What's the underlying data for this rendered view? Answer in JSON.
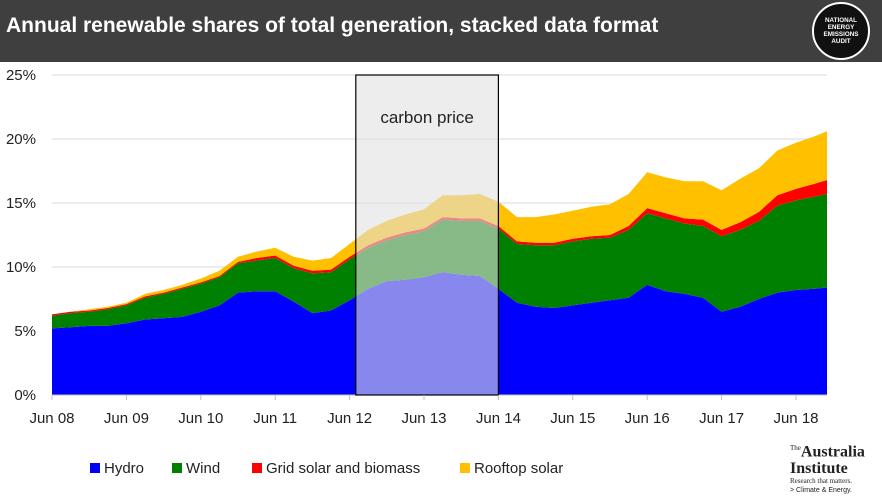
{
  "header": {
    "title": "Annual renewable shares of total generation, stacked data format",
    "badge_lines": [
      "NATIONAL",
      "ENERGY",
      "EMISSIONS",
      "AUDIT"
    ]
  },
  "logo": {
    "the": "The",
    "name_line1": "Australia",
    "name_line2": "Institute",
    "tagline": "Research that matters.",
    "sub": "> Climate & Energy."
  },
  "chart_data": {
    "type": "area",
    "stacked": true,
    "title": "Annual renewable shares of total generation, stacked data format",
    "ylim": [
      0,
      25
    ],
    "y_unit": "%",
    "y_ticks": [
      "0%",
      "5%",
      "10%",
      "15%",
      "20%",
      "25%"
    ],
    "x_range": [
      "2008-06",
      "2018-11"
    ],
    "x_ticks": [
      "Jun 08",
      "Jun 09",
      "Jun 10",
      "Jun 11",
      "Jun 12",
      "Jun 13",
      "Jun 14",
      "Jun 15",
      "Jun 16",
      "Jun 17",
      "Jun 18"
    ],
    "grid": true,
    "legend_position": "bottom",
    "x": [
      "2008-06",
      "2008-09",
      "2008-12",
      "2009-03",
      "2009-06",
      "2009-09",
      "2009-12",
      "2010-03",
      "2010-06",
      "2010-09",
      "2010-12",
      "2011-03",
      "2011-06",
      "2011-09",
      "2011-12",
      "2012-03",
      "2012-06",
      "2012-09",
      "2012-12",
      "2013-03",
      "2013-06",
      "2013-09",
      "2013-12",
      "2014-03",
      "2014-06",
      "2014-09",
      "2014-12",
      "2015-03",
      "2015-06",
      "2015-09",
      "2015-12",
      "2016-03",
      "2016-06",
      "2016-09",
      "2016-12",
      "2017-03",
      "2017-06",
      "2017-09",
      "2017-12",
      "2018-03",
      "2018-06",
      "2018-09",
      "2018-11"
    ],
    "series": [
      {
        "name": "Hydro",
        "color": "#0000ff",
        "values": [
          5.2,
          5.3,
          5.4,
          5.4,
          5.6,
          5.9,
          6.0,
          6.1,
          6.5,
          7.0,
          8.0,
          8.1,
          8.1,
          7.3,
          6.4,
          6.6,
          7.4,
          8.3,
          8.9,
          9.0,
          9.2,
          9.6,
          9.4,
          9.3,
          8.3,
          7.2,
          6.9,
          6.8,
          7.0,
          7.2,
          7.4,
          7.6,
          8.6,
          8.1,
          7.9,
          7.6,
          6.5,
          6.9,
          7.5,
          8.0,
          8.2,
          8.3,
          8.4
        ]
      },
      {
        "name": "Wind",
        "color": "#008000",
        "values": [
          1.0,
          1.1,
          1.1,
          1.3,
          1.4,
          1.7,
          1.9,
          2.2,
          2.2,
          2.2,
          2.3,
          2.4,
          2.6,
          2.6,
          3.1,
          3.0,
          3.2,
          3.2,
          3.2,
          3.5,
          3.6,
          4.1,
          4.2,
          4.3,
          4.7,
          4.6,
          4.8,
          4.9,
          5.0,
          5.0,
          4.9,
          5.3,
          5.6,
          5.7,
          5.5,
          5.6,
          5.9,
          6.0,
          6.1,
          6.8,
          7.0,
          7.2,
          7.3
        ]
      },
      {
        "name": "Grid solar and biomass",
        "color": "#ff0000",
        "values": [
          0.1,
          0.1,
          0.1,
          0.1,
          0.1,
          0.1,
          0.1,
          0.1,
          0.1,
          0.1,
          0.1,
          0.2,
          0.2,
          0.2,
          0.2,
          0.2,
          0.2,
          0.2,
          0.2,
          0.2,
          0.2,
          0.2,
          0.2,
          0.2,
          0.2,
          0.2,
          0.2,
          0.2,
          0.2,
          0.2,
          0.2,
          0.3,
          0.4,
          0.4,
          0.4,
          0.5,
          0.5,
          0.6,
          0.7,
          0.8,
          0.9,
          1.0,
          1.1
        ]
      },
      {
        "name": "Rooftop solar",
        "color": "#ffc000",
        "values": [
          0.0,
          0.0,
          0.1,
          0.1,
          0.1,
          0.2,
          0.2,
          0.2,
          0.3,
          0.4,
          0.4,
          0.5,
          0.6,
          0.7,
          0.8,
          0.9,
          1.0,
          1.2,
          1.3,
          1.4,
          1.5,
          1.7,
          1.8,
          1.9,
          1.9,
          1.9,
          2.0,
          2.2,
          2.2,
          2.3,
          2.4,
          2.5,
          2.8,
          2.8,
          2.9,
          3.0,
          3.1,
          3.4,
          3.4,
          3.5,
          3.6,
          3.7,
          3.8
        ]
      }
    ],
    "annotations": [
      {
        "text": "carbon price",
        "x_start": "2012-07",
        "x_end": "2014-06"
      }
    ]
  }
}
